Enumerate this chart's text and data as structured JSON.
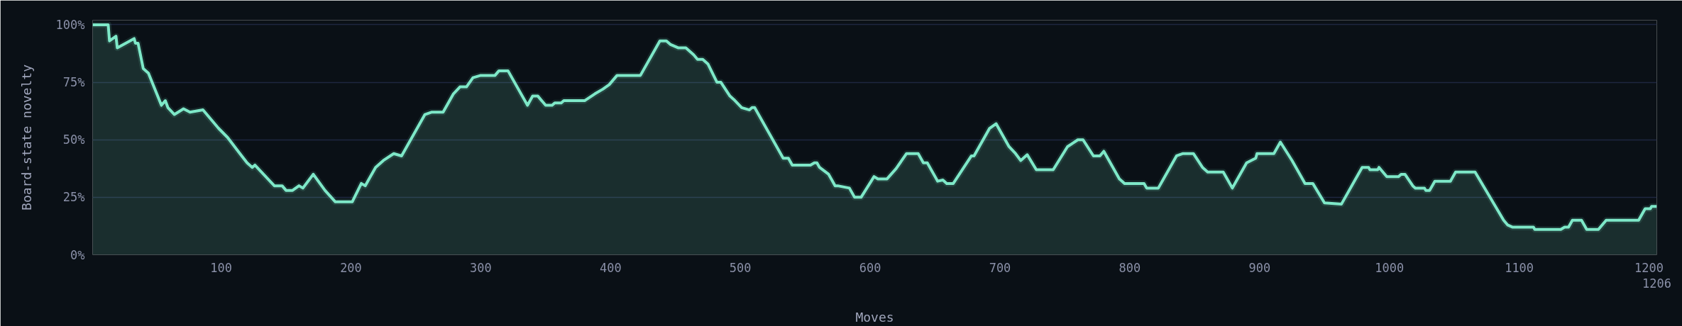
{
  "chart_data": {
    "type": "area",
    "xlabel": "Moves",
    "ylabel": "Board-state novelty",
    "xlim": [
      1,
      1206
    ],
    "ylim": [
      0,
      102
    ],
    "xticks": [
      100,
      200,
      300,
      400,
      500,
      600,
      700,
      800,
      900,
      1000,
      1100,
      1200
    ],
    "annotations": [
      "1206"
    ],
    "yticks": [
      {
        "value": 0,
        "label": "0%"
      },
      {
        "value": 25,
        "label": "25%"
      },
      {
        "value": 50,
        "label": "50%"
      },
      {
        "value": 75,
        "label": "75%"
      },
      {
        "value": 100,
        "label": "100%"
      }
    ],
    "grid": "y",
    "series": [
      {
        "color": "#7ee8c8",
        "x": [
          1,
          13,
          14,
          19,
          20,
          33,
          34,
          36,
          40,
          44,
          54,
          57,
          59,
          64,
          71,
          76,
          86,
          98,
          105,
          115,
          120,
          124,
          126,
          141,
          147,
          150,
          155,
          160,
          163,
          171,
          180,
          188,
          201,
          208,
          211,
          219,
          225,
          233,
          239,
          253,
          257,
          262,
          271,
          279,
          284,
          289,
          294,
          300,
          311,
          314,
          321,
          336,
          340,
          344,
          350,
          355,
          357,
          362,
          364,
          380,
          388,
          394,
          399,
          405,
          423,
          438,
          443,
          446,
          452,
          458,
          464,
          467,
          471,
          475,
          482,
          485,
          492,
          495,
          501,
          507,
          509,
          511,
          533,
          537,
          540,
          554,
          557,
          559,
          561,
          568,
          573,
          575,
          584,
          588,
          593,
          603,
          606,
          613,
          620,
          628,
          637,
          641,
          644,
          652,
          656,
          659,
          664,
          678,
          680,
          692,
          697,
          707,
          712,
          716,
          721,
          728,
          741,
          752,
          756,
          760,
          764,
          772,
          777,
          780,
          792,
          796,
          811,
          813,
          822,
          836,
          841,
          849,
          856,
          860,
          872,
          879,
          890,
          897,
          898,
          911,
          916,
          925,
          935,
          941,
          950,
          963,
          979,
          984,
          985,
          991,
          992,
          998,
          1007,
          1009,
          1012,
          1018,
          1020,
          1027,
          1028,
          1031,
          1035,
          1047,
          1051,
          1066,
          1088,
          1091,
          1095,
          1111,
          1112,
          1132,
          1135,
          1138,
          1141,
          1148,
          1152,
          1161,
          1167,
          1192,
          1197,
          1201,
          1202,
          1206
        ],
        "values": [
          100,
          100,
          93,
          95,
          90,
          94,
          92,
          92,
          81,
          79,
          65,
          67,
          64,
          61,
          63.5,
          62,
          63,
          55,
          51,
          43.6,
          40,
          38,
          39,
          30,
          30,
          28,
          28,
          30,
          29,
          35,
          28,
          23,
          23,
          31,
          30,
          38,
          41,
          44,
          43,
          57,
          61,
          62,
          62,
          70,
          73,
          73,
          77,
          78,
          78,
          80,
          80,
          65,
          69,
          69,
          65,
          65,
          66,
          66,
          67,
          67,
          70,
          72,
          74,
          78,
          78,
          93,
          93,
          91.5,
          90,
          90,
          87,
          85,
          85,
          83,
          75,
          75,
          69,
          67.5,
          64,
          63,
          64,
          64,
          42,
          42,
          39,
          39,
          40,
          40,
          38,
          35,
          30,
          30,
          29,
          25,
          25,
          34,
          33,
          33,
          37.5,
          44,
          44,
          40,
          40,
          32,
          32.5,
          31,
          31,
          43,
          43,
          55,
          57,
          47,
          44,
          41,
          43.5,
          37,
          37,
          47,
          48.5,
          50,
          50,
          43,
          43,
          45,
          33,
          31,
          31,
          29,
          29,
          43,
          44,
          44,
          38,
          36,
          36,
          29,
          40,
          42,
          44,
          44,
          49,
          41,
          31,
          31,
          22.6,
          22,
          38,
          38,
          37,
          37,
          38,
          34,
          34,
          35,
          35,
          30,
          29,
          29,
          28,
          28,
          32,
          32,
          36,
          36,
          15,
          13,
          12,
          12,
          11,
          11,
          12,
          12,
          15,
          15,
          11,
          11,
          15,
          15,
          20,
          20,
          21,
          21
        ]
      }
    ]
  }
}
